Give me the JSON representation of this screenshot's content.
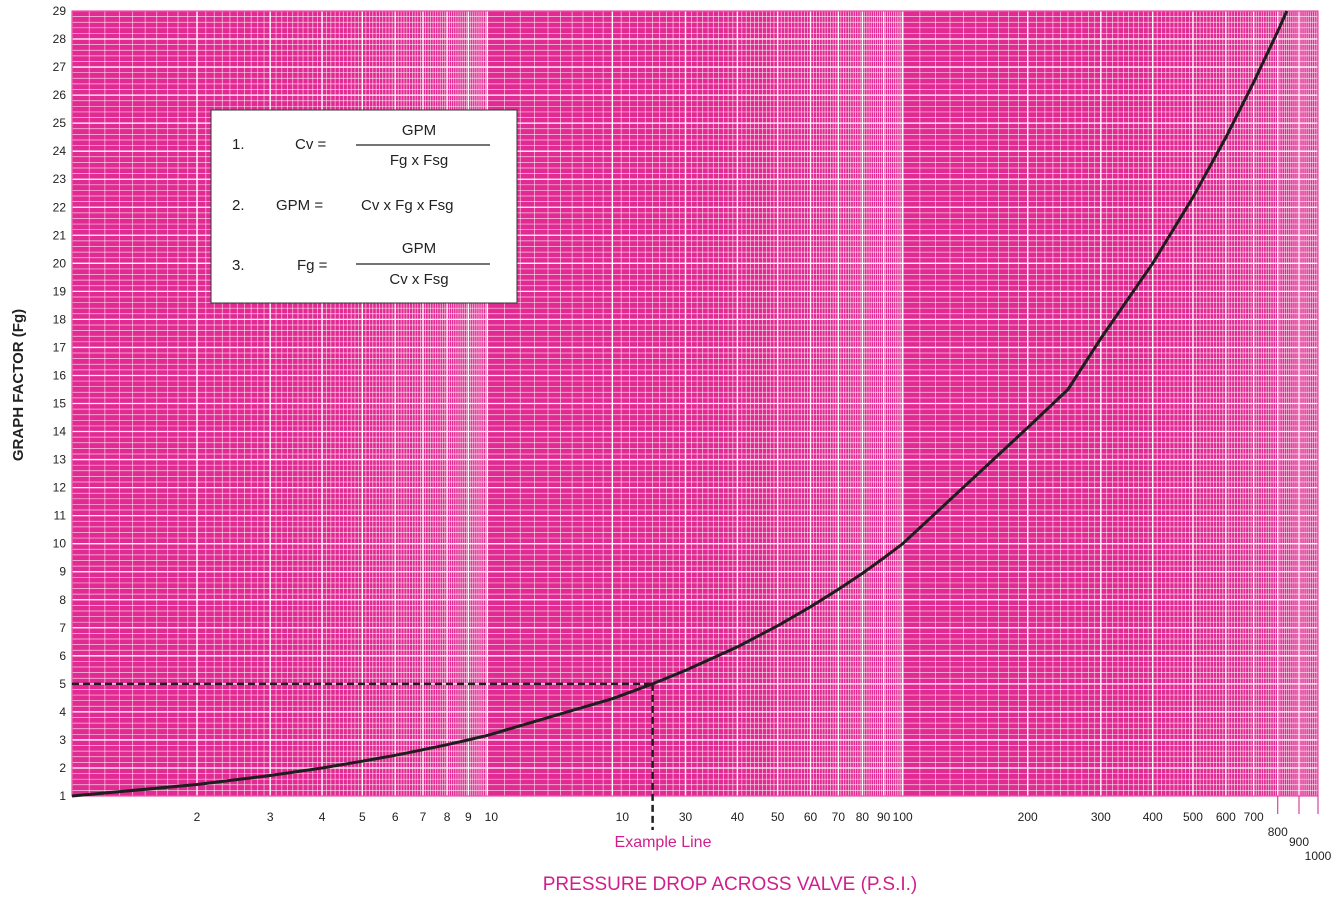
{
  "colors": {
    "background": "#e22a93",
    "grid_major": "#ffffff",
    "curve": "#1e1e1e",
    "accent_text": "#d21e8c"
  },
  "chart_data": {
    "type": "line",
    "xlabel": "PRESSURE DROP ACROSS VALVE (P.S.I.)",
    "ylabel": "GRAPH FACTOR (Fg)",
    "xscale": "log (three decades)",
    "ylim": [
      1,
      29
    ],
    "grid": true,
    "x_tick_labels": [
      "2",
      "3",
      "4",
      "5",
      "6",
      "7",
      "8",
      "9",
      "10",
      "10",
      "30",
      "40",
      "50",
      "60",
      "70",
      "80",
      "90",
      "100",
      "200",
      "300",
      "400",
      "500",
      "600",
      "700",
      "800",
      "900",
      "1000"
    ],
    "y_tick_labels": [
      "1",
      "2",
      "3",
      "4",
      "5",
      "6",
      "7",
      "8",
      "9",
      "10",
      "11",
      "12",
      "13",
      "14",
      "15",
      "16",
      "17",
      "18",
      "19",
      "20",
      "21",
      "22",
      "23",
      "24",
      "25",
      "26",
      "27",
      "28",
      "29"
    ],
    "series": [
      {
        "x": [
          1,
          2,
          3,
          4,
          5,
          6,
          7,
          8,
          9,
          10,
          20,
          25,
          30,
          40,
          50,
          60,
          70,
          80,
          90,
          100,
          200,
          250,
          300,
          400,
          500,
          600,
          700,
          800
        ],
        "values": [
          1,
          1.41,
          1.73,
          2,
          2.24,
          2.45,
          2.65,
          2.83,
          3,
          3.16,
          4.47,
          5,
          5.48,
          6.32,
          7.07,
          7.75,
          8.37,
          8.94,
          9.49,
          10,
          14.14,
          15.5,
          17.32,
          20,
          22.36,
          24.49,
          26.46,
          28.28
        ]
      }
    ],
    "annotations": {
      "example_label": "Example Line",
      "example_x": 25,
      "example_y": 5
    },
    "formula_box": {
      "f1_num": "1.",
      "f1_lhs": "Cv =",
      "f1_top": "GPM",
      "f1_bottom": "Fg x Fsg",
      "f2_num": "2.",
      "f2_lhs": "GPM =",
      "f2_rhs": "Cv x Fg x Fsg",
      "f3_num": "3.",
      "f3_lhs": "Fg =",
      "f3_top": "GPM",
      "f3_bottom": "Cv x Fsg"
    }
  }
}
